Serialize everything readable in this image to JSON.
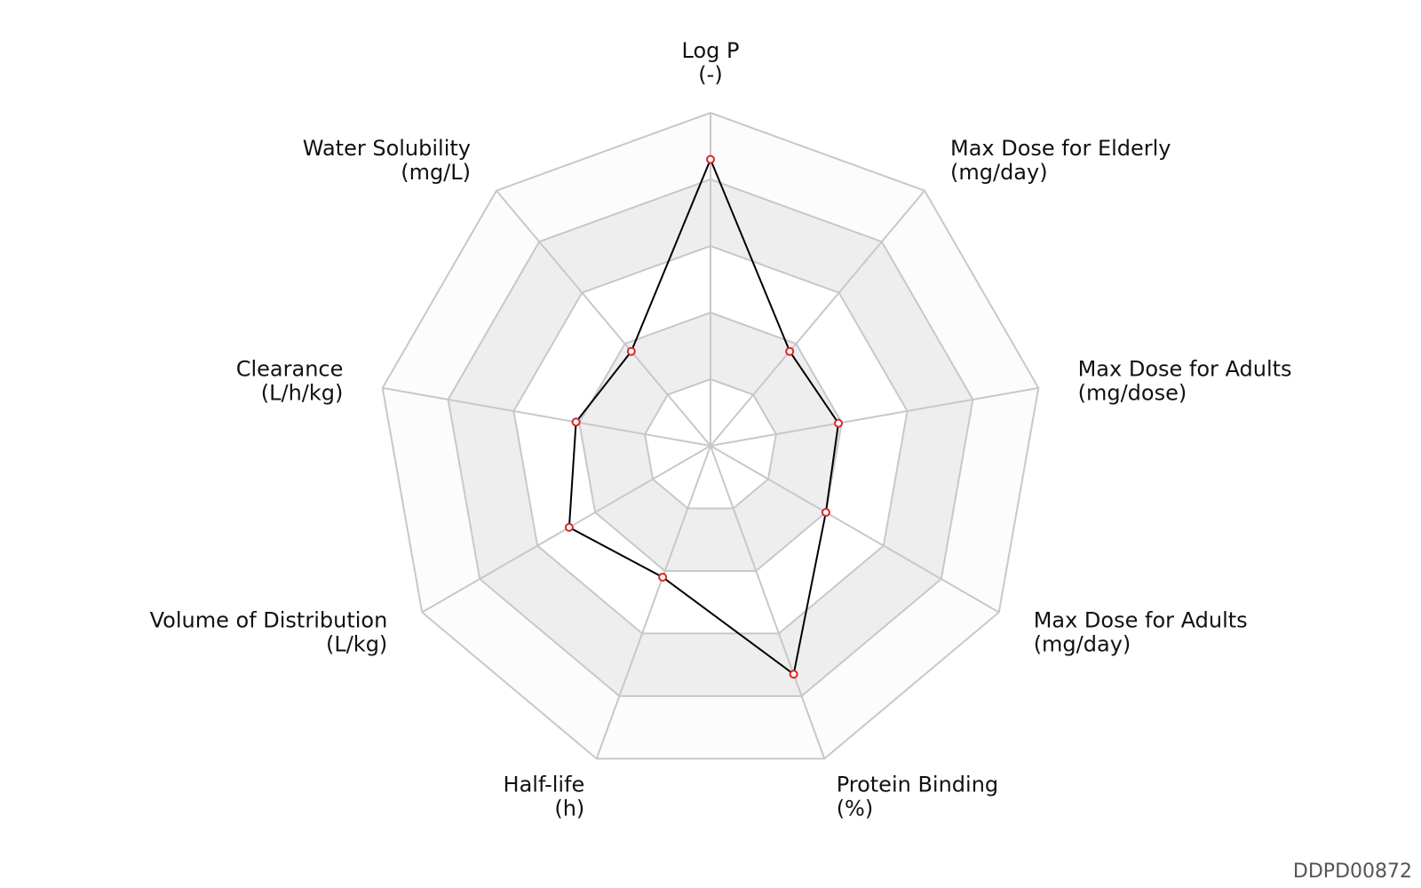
{
  "chart_data": {
    "type": "radar",
    "axes": [
      {
        "name": "Log P",
        "unit": "(-)"
      },
      {
        "name": "Max Dose for Elderly",
        "unit": "(mg/day)"
      },
      {
        "name": "Max Dose for Adults",
        "unit": "(mg/dose)"
      },
      {
        "name": "Max Dose for Adults",
        "unit": "(mg/day)"
      },
      {
        "name": "Protein Binding",
        "unit": "(%)"
      },
      {
        "name": "Half-life",
        "unit": "(h)"
      },
      {
        "name": "Volume of Distribution",
        "unit": "(L/kg)"
      },
      {
        "name": "Clearance",
        "unit": "(L/h/kg)"
      },
      {
        "name": "Water Solubility",
        "unit": "(mg/L)"
      }
    ],
    "rings": 5,
    "ring_fills": [
      "#ffffff",
      "#eeeeee",
      "#ffffff",
      "#eeeeee",
      "#fcfcfc"
    ],
    "grid_color": "#c8c8c8",
    "series": [
      {
        "values": [
          0.86,
          0.37,
          0.39,
          0.4,
          0.73,
          0.42,
          0.49,
          0.41,
          0.37
        ],
        "line_color": "#000000",
        "marker_color": "#d62728"
      }
    ]
  },
  "footer": {
    "id": "DDPD00872"
  }
}
